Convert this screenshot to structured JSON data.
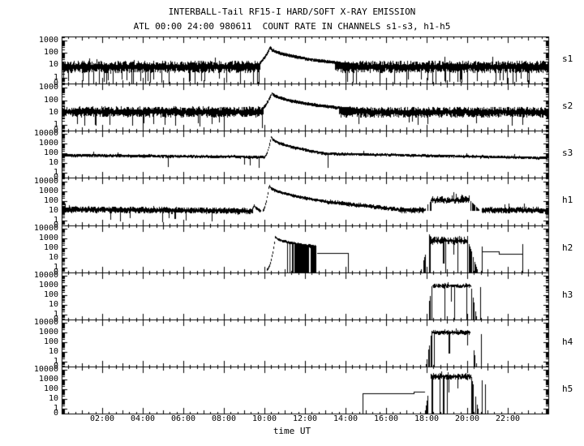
{
  "chart_data": {
    "type": "line",
    "title": "INTERBALL-Tail RF15-I HARD/SOFT X-RAY EMISSION",
    "subtitle": "ATL 00:00 24:00 980611  COUNT RATE IN CHANNELS s1-s3, h1-h5",
    "xlabel": "time UT",
    "x_range_hours": [
      0,
      24
    ],
    "x_tick_labels": [
      "02:00",
      "04:00",
      "06:00",
      "08:00",
      "10:00",
      "12:00",
      "14:00",
      "16:00",
      "18:00",
      "20:00",
      "22:00"
    ],
    "x_major_step_hours": 2,
    "x_minor_step_hours": 1,
    "x_sub_step_hours": 0.3333,
    "grid": false,
    "bg_color": "#ffffff",
    "line_color": "#000000",
    "y_scale": "log",
    "panels": [
      {
        "name": "s1",
        "yticks": [
          {
            "label": "1000",
            "log": 3
          },
          {
            "label": "100",
            "log": 2
          },
          {
            "label": "10",
            "log": 1
          },
          {
            "label": "1",
            "log": 0
          },
          {
            "label": "0",
            "log": -0.5
          }
        ],
        "log_bottom": -0.5,
        "log_top": 3.35,
        "segments": [
          {
            "type": "noise",
            "t0": 0,
            "t1": 24,
            "v0": 8,
            "v1": 8,
            "spread": 0.48,
            "spike_p": 0.12,
            "spike_v": 0.5,
            "up_p": 0.012,
            "up_m": 2.2
          },
          {
            "type": "flare",
            "t0": 9.4,
            "tp": 10.25,
            "vp": 320,
            "t1": 14.6,
            "v1": 11,
            "v0": 8
          }
        ]
      },
      {
        "name": "s2",
        "yticks": [
          {
            "label": "1000",
            "log": 3
          },
          {
            "label": "100",
            "log": 2
          },
          {
            "label": "10",
            "log": 1
          },
          {
            "label": "1",
            "log": 0
          },
          {
            "label": "0",
            "log": -0.5
          }
        ],
        "log_bottom": -0.5,
        "log_top": 3.35,
        "segments": [
          {
            "type": "noise",
            "t0": 0,
            "t1": 24,
            "v0": 12,
            "v1": 11,
            "spread": 0.42,
            "spike_p": 0.05,
            "spike_v": 1.1,
            "up_p": 0.01,
            "up_m": 2.0
          },
          {
            "type": "flare",
            "t0": 9.55,
            "tp": 10.35,
            "vp": 420,
            "t1": 15.2,
            "v1": 14,
            "v0": 11
          }
        ]
      },
      {
        "name": "s3",
        "yticks": [
          {
            "label": "10000",
            "log": 4
          },
          {
            "label": "1000",
            "log": 3
          },
          {
            "label": "100",
            "log": 2
          },
          {
            "label": "10",
            "log": 1
          },
          {
            "label": "1",
            "log": 0
          },
          {
            "label": "0",
            "log": -0.5
          }
        ],
        "log_bottom": -0.5,
        "log_top": 4.35,
        "segments": [
          {
            "type": "noise",
            "t0": 0,
            "t1": 10.0,
            "v0": 75,
            "v1": 48,
            "spread": 0.13,
            "spike_p": 0.012,
            "spike_v": 6,
            "up_p": 0.006,
            "up_m": 1.6
          },
          {
            "type": "noise",
            "t0": 13.0,
            "t1": 24,
            "v0": 110,
            "v1": 38,
            "spread": 0.12,
            "spike_p": 0.01,
            "spike_v": 5,
            "up_p": 0.006,
            "up_m": 1.6
          },
          {
            "type": "flare",
            "t0": 9.95,
            "tp": 10.3,
            "vp": 6000,
            "t1": 13.0,
            "v1": 115,
            "v0": 50
          }
        ]
      },
      {
        "name": "h1",
        "yticks": [
          {
            "label": "10000",
            "log": 4
          },
          {
            "label": "1000",
            "log": 3
          },
          {
            "label": "100",
            "log": 2
          },
          {
            "label": "10",
            "log": 1
          },
          {
            "label": "1",
            "log": 0
          },
          {
            "label": "0",
            "log": -0.5
          }
        ],
        "log_bottom": -0.5,
        "log_top": 4.35,
        "segments": [
          {
            "type": "noise",
            "t0": 0,
            "t1": 9.5,
            "v0": 14,
            "v1": 9.5,
            "spread": 0.3,
            "spike_p": 0.03,
            "spike_v": 1.3,
            "up_p": 0.01,
            "up_m": 1.8
          },
          {
            "type": "flare",
            "t0": 9.26,
            "tp": 9.46,
            "vp": 40,
            "t1": 9.78,
            "v1": 10,
            "v0": 9
          },
          {
            "type": "flare",
            "t0": 9.86,
            "tp": 10.2,
            "vp": 4500,
            "t1": 13.0,
            "v1": 95,
            "v0": 10
          },
          {
            "type": "flare",
            "t0": 11.12,
            "tp": 11.38,
            "vp": 330,
            "t1": 12.5,
            "v1": 110,
            "v0": 100
          },
          {
            "type": "noise",
            "t0": 13.0,
            "t1": 16.6,
            "v0": 90,
            "v1": 14,
            "spread": 0.2,
            "spike_p": 0.01,
            "spike_v": 2
          },
          {
            "type": "noise",
            "t0": 16.6,
            "t1": 17.9,
            "v0": 12,
            "v1": 12,
            "spread": 0.28,
            "spike_p": 0.015,
            "spike_v": 1.5
          },
          {
            "type": "burst",
            "t0": 17.9,
            "t1": 20.62,
            "rise": 0.35,
            "fall": 0.5,
            "v": 120,
            "su": 0.45,
            "sd": 0.28,
            "drop_p": 0,
            "base": 11,
            "up_p": 0.1,
            "up_m": 2.5
          },
          {
            "type": "noise",
            "t0": 20.72,
            "t1": 24,
            "v0": 12,
            "v1": 11,
            "spread": 0.3,
            "spike_p": 0.015,
            "spike_v": 1.5,
            "up_p": 0.025,
            "up_m": 2.8
          }
        ]
      },
      {
        "name": "h2",
        "yticks": [
          {
            "label": "10000",
            "log": 4
          },
          {
            "label": "1000",
            "log": 3
          },
          {
            "label": "100",
            "log": 2
          },
          {
            "label": "10",
            "log": 1
          },
          {
            "label": "1",
            "log": 0
          },
          {
            "label": "0",
            "log": -0.5
          }
        ],
        "log_bottom": -0.5,
        "log_top": 4.35,
        "segments": [
          {
            "type": "flareburst",
            "t0": 10.08,
            "tp": 10.5,
            "vp": 1500,
            "t1": 12.57,
            "v1": 150,
            "v0": 0.6,
            "drop_start": 10.95,
            "drop_full": 11.5,
            "drop_p": 0.85
          },
          {
            "type": "line",
            "t0": 12.6,
            "t1": 14.12,
            "v": 30,
            "conn1": "bottom"
          },
          {
            "type": "burst",
            "t0": 17.72,
            "t1": 20.55,
            "rise": 0.42,
            "fall": 0.5,
            "v": 600,
            "su": 0.42,
            "sd": 0.35,
            "drop_p": 0.2,
            "up_p": 0.08,
            "up_m": 2.0,
            "spikes": [
              [
                18.85,
                3
              ],
              [
                19.35,
                25
              ]
            ]
          },
          {
            "type": "vline",
            "t": 20.73,
            "va": -1,
            "vb": 130
          },
          {
            "type": "line",
            "t0": 20.73,
            "t1": 21.55,
            "v": 40
          },
          {
            "type": "vline",
            "t": 21.55,
            "va": 25,
            "vb": 40
          },
          {
            "type": "line",
            "t0": 21.55,
            "t1": 22.72,
            "v": 25
          },
          {
            "type": "vline",
            "t": 22.72,
            "va": -1,
            "vb": 230
          }
        ]
      },
      {
        "name": "h3",
        "yticks": [
          {
            "label": "10000",
            "log": 4
          },
          {
            "label": "1000",
            "log": 3
          },
          {
            "label": "100",
            "log": 2
          },
          {
            "label": "10",
            "log": 1
          },
          {
            "label": "1",
            "log": 0
          },
          {
            "label": "0",
            "log": -0.5
          }
        ],
        "log_bottom": -0.5,
        "log_top": 4.35,
        "segments": [
          {
            "type": "burst",
            "t0": 18.0,
            "t1": 20.5,
            "rise": 0.28,
            "fall": 0.3,
            "v": 1000,
            "su": 0.2,
            "sd": 0.22,
            "drop_p": 0.05,
            "up_p": 0.05,
            "up_m": 1.6,
            "spikes": [
              [
                19.22,
                25
              ]
            ]
          },
          {
            "type": "vline",
            "t": 20.63,
            "va": -1,
            "vb": 600
          }
        ]
      },
      {
        "name": "h4",
        "yticks": [
          {
            "label": "10000",
            "log": 4
          },
          {
            "label": "1000",
            "log": 3
          },
          {
            "label": "100",
            "log": 2
          },
          {
            "label": "10",
            "log": 1
          },
          {
            "label": "1",
            "log": 0
          },
          {
            "label": "0",
            "log": -0.5
          }
        ],
        "log_bottom": -0.5,
        "log_top": 4.35,
        "segments": [
          {
            "type": "burst",
            "t0": 17.97,
            "t1": 20.5,
            "rise": 0.3,
            "fall": 0.32,
            "v": 1100,
            "su": 0.22,
            "sd": 0.25,
            "drop_p": 0.07,
            "up_p": 0.05,
            "up_m": 1.7,
            "spikes": [
              [
                19.13,
                8
              ],
              [
                20.02,
                60
              ]
            ]
          },
          {
            "type": "vline",
            "t": 20.68,
            "va": -1,
            "vb": 700
          }
        ]
      },
      {
        "name": "h5",
        "yticks": [
          {
            "label": "10000",
            "log": 4
          },
          {
            "label": "1000",
            "log": 3
          },
          {
            "label": "100",
            "log": 2
          },
          {
            "label": "10",
            "log": 1
          },
          {
            "label": "1",
            "log": 0
          },
          {
            "label": "0",
            "log": -0.5
          }
        ],
        "log_bottom": -0.5,
        "log_top": 4.35,
        "segments": [
          {
            "type": "line",
            "t0": 14.85,
            "t1": 17.35,
            "v": 40,
            "conn0": "bottom"
          },
          {
            "type": "vline",
            "t": 17.35,
            "va": 40,
            "vb": 60
          },
          {
            "type": "line",
            "t0": 17.35,
            "t1": 17.93,
            "v": 60
          },
          {
            "type": "burst",
            "t0": 17.93,
            "t1": 20.6,
            "rise": 0.3,
            "fall": 0.38,
            "v": 2200,
            "su": 0.3,
            "sd": 0.3,
            "drop_p": 0.1,
            "up_p": 0.08,
            "up_m": 1.8,
            "spikes": [
              [
                19.1,
                60
              ],
              [
                19.55,
                150
              ]
            ]
          },
          {
            "type": "vline",
            "t": 20.72,
            "va": -1,
            "vb": 900
          },
          {
            "type": "vline",
            "t": 20.88,
            "va": -1,
            "vb": 350
          }
        ]
      }
    ]
  }
}
